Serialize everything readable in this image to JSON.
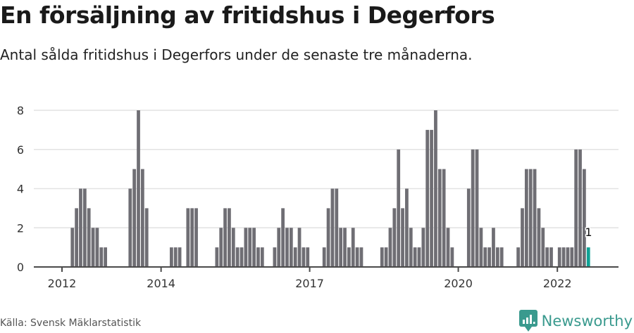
{
  "header": {
    "title": "En försäljning av fritidshus i Degerfors",
    "subtitle": "Antal sålda fritidshus i Degerfors under de senaste tre månaderna."
  },
  "footer": {
    "source": "Källa: Svensk Mäklarstatistik",
    "brand": "Newsworthy"
  },
  "colors": {
    "bar": "#6f6e74",
    "highlight": "#0fa295",
    "grid": "#e2e2e2",
    "axis": "#4a4a4a",
    "brand": "#3a9a8e"
  },
  "chart_data": {
    "type": "bar",
    "title": "En försäljning av fritidshus i Degerfors",
    "subtitle": "Antal sålda fritidshus i Degerfors under de senaste tre månaderna.",
    "xlabel": "",
    "ylabel": "",
    "ylim": [
      0,
      8
    ],
    "yticks": [
      0,
      2,
      4,
      6,
      8
    ],
    "xticks": [
      {
        "label": "2012",
        "index": 0
      },
      {
        "label": "2014",
        "index": 24
      },
      {
        "label": "2017",
        "index": 60
      },
      {
        "label": "2020",
        "index": 96
      },
      {
        "label": "2022",
        "index": 120
      }
    ],
    "start": "2012-01",
    "frequency": "monthly",
    "grid": true,
    "highlight_index": 127,
    "highlight_label": "1",
    "values": [
      0,
      0,
      2,
      3,
      4,
      4,
      3,
      2,
      2,
      1,
      1,
      0,
      0,
      0,
      0,
      0,
      4,
      5,
      8,
      5,
      3,
      0,
      0,
      0,
      0,
      0,
      1,
      1,
      1,
      0,
      3,
      3,
      3,
      0,
      0,
      0,
      0,
      1,
      2,
      3,
      3,
      2,
      1,
      1,
      2,
      2,
      2,
      1,
      1,
      0,
      0,
      1,
      2,
      3,
      2,
      2,
      1,
      2,
      1,
      1,
      0,
      0,
      0,
      1,
      3,
      4,
      4,
      2,
      2,
      1,
      2,
      1,
      1,
      0,
      0,
      0,
      0,
      1,
      1,
      2,
      3,
      6,
      3,
      4,
      2,
      1,
      1,
      2,
      7,
      7,
      8,
      5,
      5,
      2,
      1,
      0,
      0,
      0,
      4,
      6,
      6,
      2,
      1,
      1,
      2,
      1,
      1,
      0,
      0,
      0,
      1,
      3,
      5,
      5,
      5,
      3,
      2,
      1,
      1,
      0,
      1,
      1,
      1,
      1,
      6,
      6,
      5,
      1
    ]
  }
}
